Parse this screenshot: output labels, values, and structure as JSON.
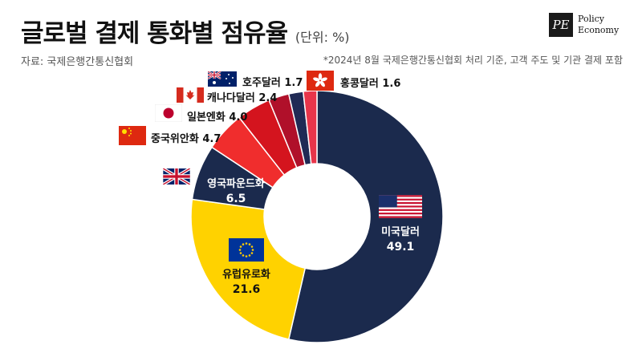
{
  "header": {
    "title": "글로벌 결제 통화별 점유율",
    "unit": "(단위: %)",
    "source": "자료: 국제은행간통신협회",
    "note": "*2024년 8월 국제은행간통신협회 처리 기준, 고객 주도 및 기관 결제 포함"
  },
  "logo": {
    "mark": "PE",
    "line1": "Policy",
    "line2": "Economy"
  },
  "chart_data": {
    "type": "pie",
    "categories": [
      "미국달러",
      "유럽유로화",
      "영국파운드화",
      "중국위안화",
      "일본엔화",
      "캐나다달러",
      "호주달러",
      "홍콩달러"
    ],
    "values": [
      49.1,
      21.6,
      6.5,
      4.7,
      4.0,
      2.4,
      1.7,
      1.6
    ],
    "colors": [
      "#1b2a4d",
      "#ffd200",
      "#1b2a4d",
      "#f02d2d",
      "#d4141e",
      "#b0102a",
      "#202a55",
      "#e8354a"
    ],
    "labels": [
      {
        "name": "미국달러",
        "value": "49.1",
        "flag": "us-flag-icon"
      },
      {
        "name": "유럽유로화",
        "value": "21.6",
        "flag": "eu-flag-icon"
      },
      {
        "name": "영국파운드화",
        "value": "6.5",
        "flag": "uk-flag-icon"
      },
      {
        "name": "중국위안화",
        "value": "4.7",
        "flag": "china-flag-icon"
      },
      {
        "name": "일본엔화",
        "value": "4.0",
        "flag": "japan-flag-icon"
      },
      {
        "name": "캐나다달러",
        "value": "2.4",
        "flag": "canada-flag-icon"
      },
      {
        "name": "호주달러",
        "value": "1.7",
        "flag": "australia-flag-icon"
      },
      {
        "name": "홍콩달러",
        "value": "1.6",
        "flag": "hongkong-flag-icon"
      }
    ]
  }
}
